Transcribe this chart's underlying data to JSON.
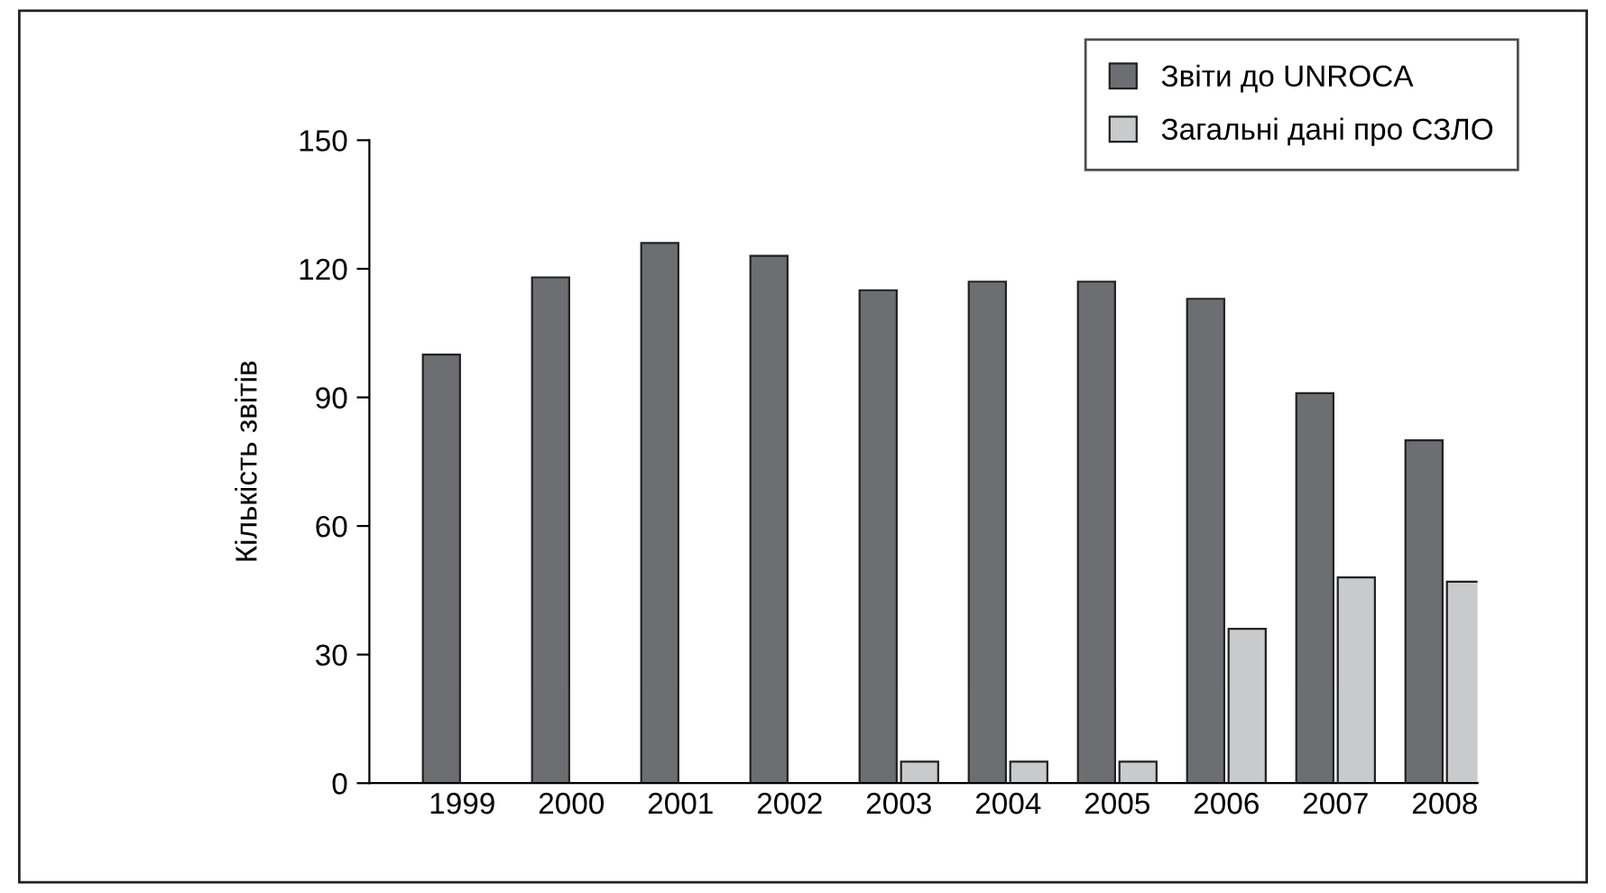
{
  "chart_data": {
    "type": "bar",
    "ylabel": "Кількість звітів",
    "categories": [
      "1999",
      "2000",
      "2001",
      "2002",
      "2003",
      "2004",
      "2005",
      "2006",
      "2007",
      "2008"
    ],
    "series": [
      {
        "name": "Звіти до UNROCA",
        "color": "#6d6e71",
        "values": [
          100,
          118,
          126,
          123,
          115,
          117,
          117,
          113,
          91,
          80
        ]
      },
      {
        "name": "Загальні дані про СЗЛО",
        "color": "#c8cacc",
        "values": [
          null,
          null,
          null,
          null,
          5,
          5,
          5,
          36,
          48,
          47
        ]
      }
    ],
    "ylim": [
      0,
      150
    ],
    "yticks": [
      0,
      30,
      60,
      90,
      120,
      150
    ],
    "grid": false,
    "legend": "top right"
  }
}
